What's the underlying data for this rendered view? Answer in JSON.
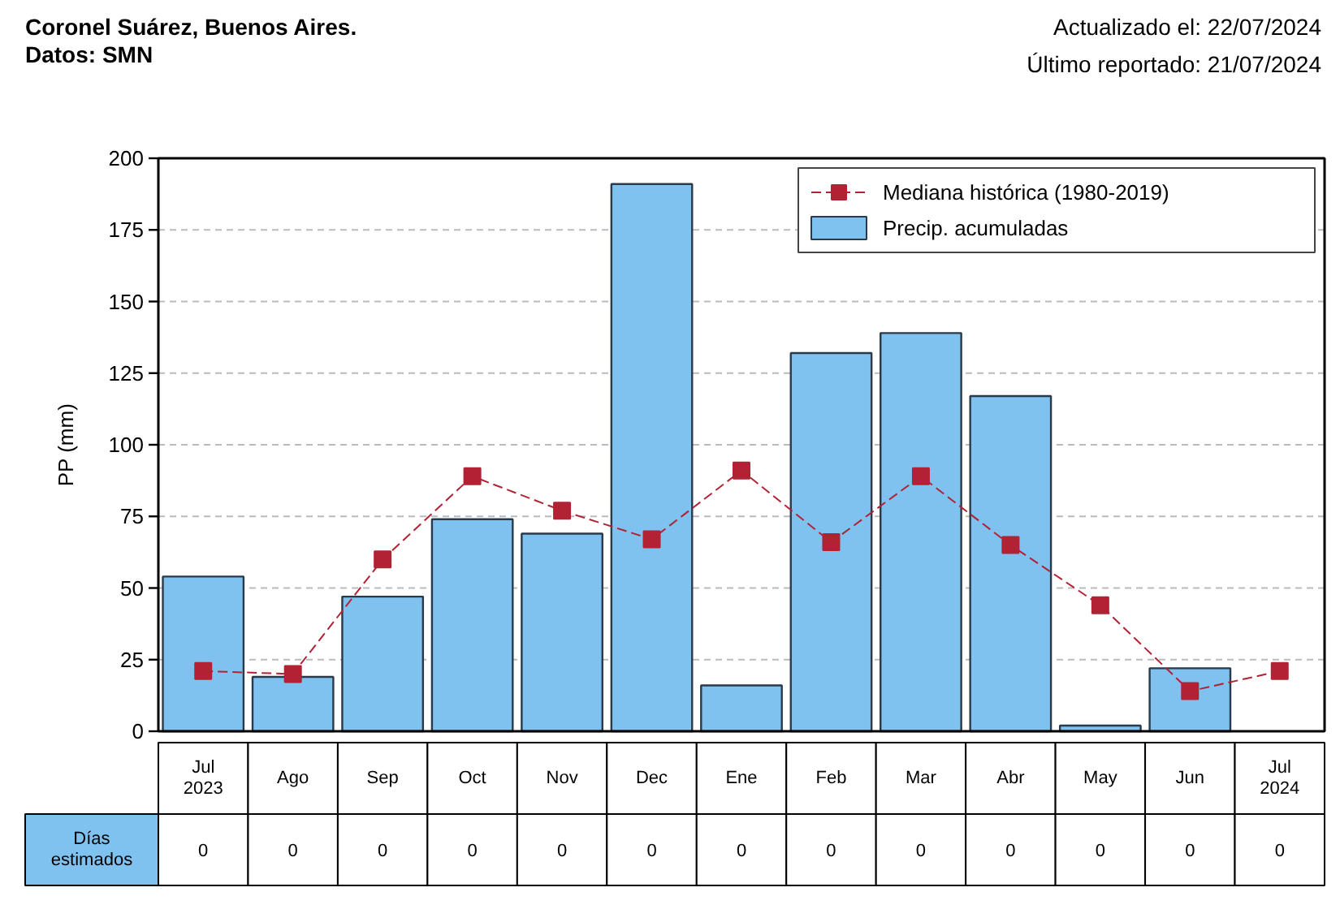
{
  "chart_data": {
    "type": "bar",
    "title": "Coronel Suárez, Buenos Aires.\nDatos: SMN",
    "subtitle": "Actualizado el: 22/07/2024\nÚltimo reportado: 21/07/2024",
    "ylabel": "PP (mm)",
    "categories": [
      "Jul\n2023",
      "Ago",
      "Sep",
      "Oct",
      "Nov",
      "Dec",
      "Ene",
      "Feb",
      "Mar",
      "Abr",
      "May",
      "Jun",
      "Jul\n2024"
    ],
    "series": [
      {
        "name": "Mediana histórica (1980-2019)",
        "type": "line",
        "color": "#b22234",
        "marker": "square",
        "line_style": "dashed",
        "values": [
          21,
          20,
          60,
          89,
          77,
          67,
          91,
          66,
          89,
          65,
          44,
          14,
          21
        ]
      },
      {
        "name": "Precip. acumuladas",
        "color": "#7fc1ef",
        "values": [
          54,
          19,
          47,
          74,
          69,
          191,
          16,
          132,
          139,
          117,
          2,
          22,
          null
        ]
      }
    ],
    "annotations": [
      "Días estimados",
      "0",
      "0",
      "0",
      "0",
      "0",
      "0",
      "0",
      "0",
      "0",
      "0",
      "0",
      "0",
      "0"
    ],
    "ylim": [
      0,
      200
    ],
    "yticks": [
      0,
      25,
      50,
      75,
      100,
      125,
      150,
      175,
      200
    ],
    "grid": "y",
    "legend": "top right"
  }
}
